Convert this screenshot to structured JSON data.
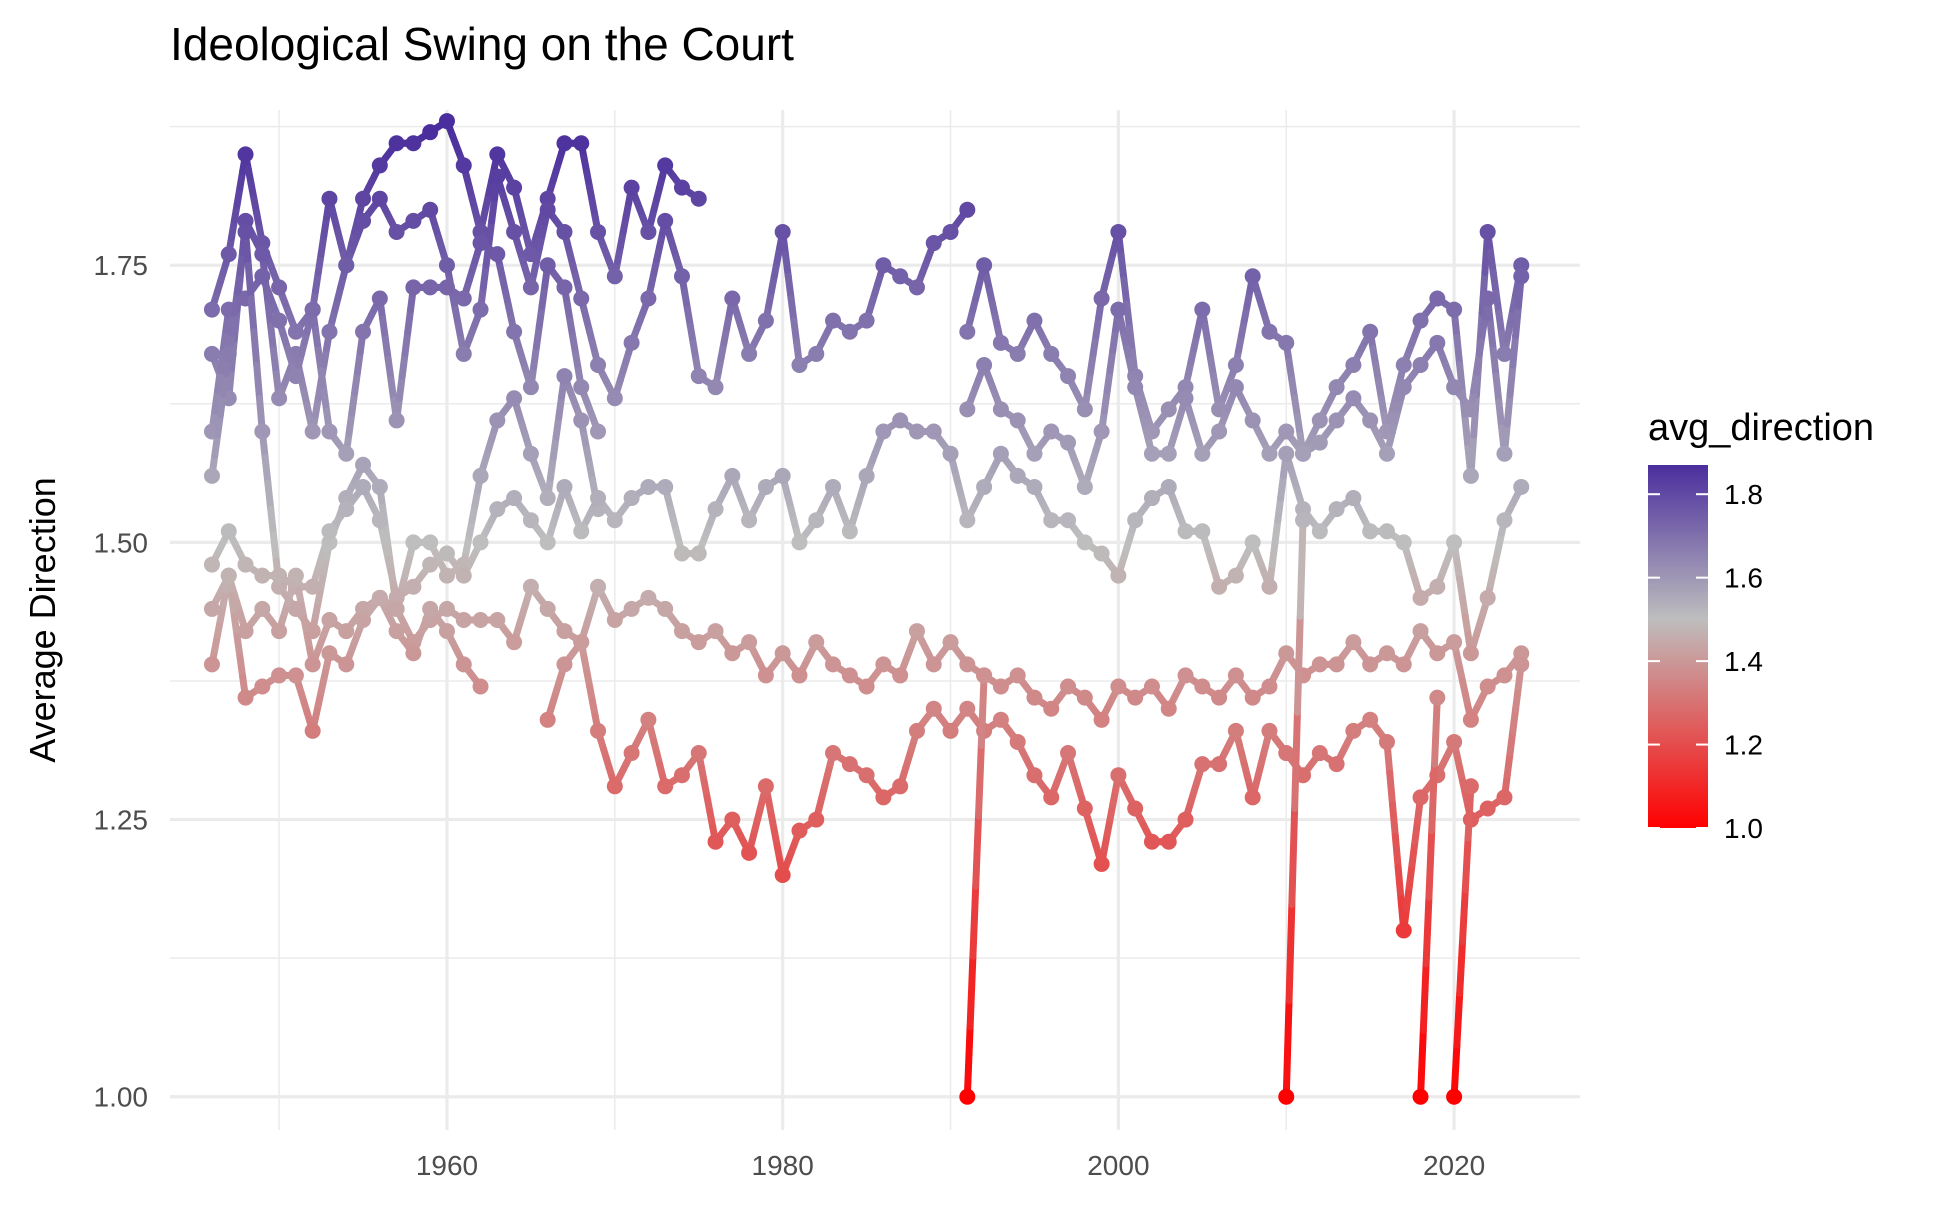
{
  "chart_data": {
    "type": "line",
    "title": "Ideological Swing on the Court",
    "xlabel": "",
    "ylabel": "Average Direction",
    "xlim": [
      1943.5,
      2027.5
    ],
    "ylim": [
      0.97,
      1.89
    ],
    "x_ticks": [
      1960,
      1980,
      2000,
      2020
    ],
    "x_tick_labels": [
      "1960",
      "1980",
      "2000",
      "2020"
    ],
    "x_minor_ticks": [
      1950,
      1970,
      1990,
      2010
    ],
    "y_ticks": [
      1.0,
      1.25,
      1.5,
      1.75
    ],
    "y_tick_labels": [
      "1.00",
      "1.25",
      "1.50",
      "1.75"
    ],
    "y_minor_ticks": [
      1.125,
      1.375,
      1.625,
      1.875
    ],
    "grid": true,
    "legend": {
      "title": "avg_direction",
      "placement": "right",
      "ticks": [
        1.0,
        1.2,
        1.4,
        1.6,
        1.8
      ],
      "tick_labels": [
        "1.0",
        "1.2",
        "1.4",
        "1.6",
        "1.8"
      ],
      "range": [
        1.0,
        1.87
      ]
    },
    "color_scale": {
      "low": "#FF0000",
      "mid": "#BEBEBE",
      "high": "#4B2E9D",
      "midpoint": 1.5
    },
    "series": [
      {
        "name": "series-1",
        "x": [
          1946,
          1947,
          1948,
          1949,
          1950,
          1951,
          1952,
          1953,
          1954,
          1955,
          1956,
          1957,
          1958,
          1959,
          1960,
          1961,
          1962,
          1963,
          1964,
          1965,
          1966,
          1967,
          1968,
          1969,
          1970,
          1971,
          1972,
          1973,
          1974,
          1975
        ],
        "values": [
          1.71,
          1.76,
          1.85,
          1.77,
          1.73,
          1.69,
          1.71,
          1.81,
          1.75,
          1.81,
          1.84,
          1.86,
          1.86,
          1.87,
          1.88,
          1.84,
          1.78,
          1.85,
          1.82,
          1.76,
          1.81,
          1.86,
          1.86,
          1.78,
          1.74,
          1.82,
          1.78,
          1.84,
          1.82,
          1.81
        ]
      },
      {
        "name": "series-2",
        "x": [
          1946,
          1947,
          1948,
          1949,
          1950,
          1951,
          1952,
          1953,
          1954,
          1955,
          1956,
          1957,
          1958,
          1959,
          1960,
          1961,
          1962,
          1963,
          1964,
          1965,
          1966,
          1967,
          1968,
          1969,
          1970,
          1971,
          1972,
          1973,
          1974,
          1975,
          1976,
          1977,
          1978,
          1979,
          1980,
          1981,
          1982,
          1983,
          1984,
          1985,
          1986,
          1987,
          1988,
          1989,
          1990,
          1991
        ],
        "values": [
          1.67,
          1.63,
          1.79,
          1.76,
          1.63,
          1.67,
          1.6,
          1.69,
          1.75,
          1.79,
          1.81,
          1.78,
          1.79,
          1.8,
          1.75,
          1.67,
          1.71,
          1.83,
          1.78,
          1.73,
          1.8,
          1.78,
          1.72,
          1.66,
          1.63,
          1.68,
          1.72,
          1.79,
          1.74,
          1.65,
          1.64,
          1.72,
          1.67,
          1.7,
          1.78,
          1.66,
          1.67,
          1.7,
          1.69,
          1.7,
          1.75,
          1.74,
          1.73,
          1.77,
          1.78,
          1.8
        ]
      },
      {
        "name": "series-3",
        "x": [
          1946,
          1947,
          1948,
          1949,
          1950,
          1951,
          1952,
          1953,
          1954,
          1955,
          1956,
          1957,
          1958,
          1959,
          1960,
          1961,
          1962,
          1963,
          1964,
          1965,
          1966,
          1967,
          1968,
          1969
        ],
        "values": [
          1.6,
          1.71,
          1.72,
          1.74,
          1.7,
          1.65,
          1.71,
          1.6,
          1.58,
          1.69,
          1.72,
          1.61,
          1.73,
          1.73,
          1.73,
          1.72,
          1.77,
          1.76,
          1.69,
          1.64,
          1.75,
          1.73,
          1.64,
          1.6
        ]
      },
      {
        "name": "series-4",
        "x": [
          1946,
          1947,
          1948,
          1949,
          1950,
          1951,
          1952,
          1953,
          1954,
          1955,
          1956,
          1957,
          1958,
          1959,
          1960,
          1961,
          1962,
          1963,
          1964,
          1965,
          1966,
          1967,
          1968,
          1969
        ],
        "values": [
          1.56,
          1.67,
          1.78,
          1.6,
          1.46,
          1.44,
          1.42,
          1.5,
          1.54,
          1.57,
          1.55,
          1.44,
          1.5,
          1.5,
          1.47,
          1.48,
          1.56,
          1.61,
          1.63,
          1.58,
          1.54,
          1.65,
          1.61,
          1.53
        ]
      },
      {
        "name": "series-5",
        "x": [
          1946,
          1947,
          1948,
          1949,
          1950,
          1951,
          1952,
          1953,
          1954,
          1955,
          1956,
          1957,
          1958,
          1959,
          1960,
          1961,
          1962,
          1963,
          1964,
          1965,
          1966,
          1967,
          1968,
          1969,
          1970,
          1971,
          1972,
          1973,
          1974,
          1975,
          1976,
          1977,
          1978,
          1979,
          1980,
          1981,
          1982,
          1983,
          1984,
          1985,
          1986,
          1987,
          1988,
          1989,
          1990,
          1991,
          1992,
          1993,
          1994,
          1995,
          1996,
          1997,
          1998,
          1999,
          2000,
          2001,
          2002,
          2003,
          2004,
          2005,
          2006,
          2007,
          2008,
          2009,
          2010,
          2011,
          2012,
          2013,
          2014,
          2015,
          2016,
          2017,
          2018,
          2019,
          2020,
          2021,
          2022,
          2023,
          2024
        ],
        "values": [
          1.48,
          1.51,
          1.48,
          1.47,
          1.47,
          1.46,
          1.46,
          1.51,
          1.53,
          1.55,
          1.52,
          1.45,
          1.46,
          1.48,
          1.49,
          1.47,
          1.5,
          1.53,
          1.54,
          1.52,
          1.5,
          1.55,
          1.51,
          1.54,
          1.52,
          1.54,
          1.55,
          1.55,
          1.49,
          1.49,
          1.53,
          1.56,
          1.52,
          1.55,
          1.56,
          1.5,
          1.52,
          1.55,
          1.51,
          1.56,
          1.6,
          1.61,
          1.6,
          1.6,
          1.58,
          1.52,
          1.55,
          1.58,
          1.56,
          1.55,
          1.52,
          1.52,
          1.5,
          1.49,
          1.47,
          1.52,
          1.54,
          1.55,
          1.51,
          1.51,
          1.46,
          1.47,
          1.5,
          1.46,
          1.58,
          1.53,
          1.51,
          1.53,
          1.54,
          1.51,
          1.51,
          1.5,
          1.45,
          1.46,
          1.5,
          1.4,
          1.45,
          1.52,
          1.55
        ]
      },
      {
        "name": "series-6",
        "x": [
          1946,
          1947,
          1948,
          1949,
          1950,
          1951,
          1952,
          1953,
          1954,
          1955,
          1956,
          1957,
          1958,
          1959,
          1960,
          1961,
          1962,
          1963,
          1964,
          1965,
          1966,
          1967,
          1968,
          1969,
          1970,
          1971,
          1972,
          1973,
          1974,
          1975,
          1976,
          1977,
          1978,
          1979,
          1980,
          1981,
          1982,
          1983,
          1984,
          1985,
          1986,
          1987,
          1988,
          1989,
          1990,
          1991,
          1992,
          1993,
          1994,
          1995,
          1996,
          1997,
          1998,
          1999,
          2000,
          2001,
          2002,
          2003,
          2004,
          2005,
          2006,
          2007,
          2008,
          2009,
          2010,
          2011,
          2012,
          2013,
          2014,
          2015,
          2016,
          2017,
          2018,
          2019,
          2020,
          2021,
          2022,
          2023,
          2024
        ],
        "values": [
          1.44,
          1.47,
          1.42,
          1.44,
          1.42,
          1.47,
          1.39,
          1.43,
          1.42,
          1.44,
          1.45,
          1.44,
          1.41,
          1.43,
          1.44,
          1.43,
          1.43,
          1.43,
          1.41,
          1.46,
          1.44,
          1.42,
          1.41,
          1.46,
          1.43,
          1.44,
          1.45,
          1.44,
          1.42,
          1.41,
          1.42,
          1.4,
          1.41,
          1.38,
          1.4,
          1.38,
          1.41,
          1.39,
          1.38,
          1.37,
          1.39,
          1.38,
          1.42,
          1.39,
          1.41,
          1.39,
          1.38,
          1.37,
          1.38,
          1.36,
          1.35,
          1.37,
          1.36,
          1.34,
          1.37,
          1.36,
          1.37,
          1.35,
          1.38,
          1.37,
          1.36,
          1.38,
          1.36,
          1.37,
          1.4,
          1.38,
          1.39,
          1.39,
          1.41,
          1.39,
          1.4,
          1.39,
          1.42,
          1.4,
          1.41,
          1.34,
          1.37,
          1.38,
          1.4
        ]
      },
      {
        "name": "series-7",
        "x": [
          1946,
          1947,
          1948,
          1949,
          1950,
          1951,
          1952,
          1953,
          1954,
          1955,
          1956,
          1957,
          1958,
          1959,
          1960,
          1961,
          1962
        ],
        "values": [
          1.39,
          1.47,
          1.36,
          1.37,
          1.38,
          1.38,
          1.33,
          1.4,
          1.39,
          1.43,
          1.45,
          1.42,
          1.4,
          1.44,
          1.42,
          1.39,
          1.37
        ]
      },
      {
        "name": "series-8",
        "x": [
          1966,
          1967,
          1968,
          1969,
          1970,
          1971,
          1972,
          1973,
          1974,
          1975,
          1976,
          1977,
          1978,
          1979,
          1980,
          1981,
          1982,
          1983,
          1984,
          1985,
          1986,
          1987,
          1988,
          1989,
          1990,
          1991,
          1992,
          1993,
          1994,
          1995,
          1996,
          1997,
          1998,
          1999,
          2000,
          2001,
          2002,
          2003,
          2004,
          2005,
          2006,
          2007,
          2008,
          2009,
          2010,
          2011,
          2012,
          2013,
          2014,
          2015,
          2016,
          2017,
          2018,
          2019,
          2020,
          2021,
          2022,
          2023,
          2024
        ],
        "values": [
          1.34,
          1.39,
          1.41,
          1.33,
          1.28,
          1.31,
          1.34,
          1.28,
          1.29,
          1.31,
          1.23,
          1.25,
          1.22,
          1.28,
          1.2,
          1.24,
          1.25,
          1.31,
          1.3,
          1.29,
          1.27,
          1.28,
          1.33,
          1.35,
          1.33,
          1.35,
          1.33,
          1.34,
          1.32,
          1.29,
          1.27,
          1.31,
          1.26,
          1.21,
          1.29,
          1.26,
          1.23,
          1.23,
          1.25,
          1.3,
          1.3,
          1.33,
          1.27,
          1.33,
          1.31,
          1.29,
          1.31,
          1.3,
          1.33,
          1.34,
          1.32,
          1.15,
          1.27,
          1.29,
          1.32,
          1.25,
          1.26,
          1.27,
          1.39
        ]
      },
      {
        "name": "series-9",
        "x": [
          1991,
          1992,
          1993,
          1994,
          1995,
          1996,
          1997,
          1998,
          1999,
          2000,
          2001,
          2002,
          2003,
          2004,
          2005,
          2006,
          2007,
          2008,
          2009,
          2010,
          2011,
          2012,
          2013,
          2014,
          2015,
          2016,
          2017,
          2018,
          2019,
          2020,
          2021,
          2022,
          2023,
          2024
        ],
        "values": [
          1.69,
          1.75,
          1.68,
          1.67,
          1.7,
          1.67,
          1.65,
          1.62,
          1.72,
          1.78,
          1.65,
          1.6,
          1.62,
          1.64,
          1.71,
          1.62,
          1.66,
          1.74,
          1.69,
          1.68,
          1.58,
          1.61,
          1.64,
          1.66,
          1.69,
          1.6,
          1.66,
          1.7,
          1.72,
          1.71,
          1.56,
          1.78,
          1.67,
          1.75
        ]
      },
      {
        "name": "series-10",
        "x": [
          1991,
          1992,
          1993,
          1994,
          1995,
          1996,
          1997,
          1998,
          1999,
          2000,
          2001,
          2002,
          2003,
          2004,
          2005,
          2006,
          2007,
          2008,
          2009,
          2010,
          2011,
          2012,
          2013,
          2014,
          2015,
          2016,
          2017,
          2018,
          2019,
          2020,
          2021,
          2022,
          2023,
          2024
        ],
        "values": [
          1.62,
          1.66,
          1.62,
          1.61,
          1.58,
          1.6,
          1.59,
          1.55,
          1.6,
          1.71,
          1.64,
          1.58,
          1.58,
          1.63,
          1.58,
          1.6,
          1.64,
          1.61,
          1.58,
          1.6,
          1.58,
          1.59,
          1.61,
          1.63,
          1.61,
          1.58,
          1.64,
          1.66,
          1.68,
          1.64,
          1.62,
          1.72,
          1.58,
          1.74
        ]
      },
      {
        "name": "series-11",
        "x": [
          1991,
          1992
        ],
        "values": [
          1.0,
          1.38
        ]
      },
      {
        "name": "series-12",
        "x": [
          2010,
          2011
        ],
        "values": [
          1.0,
          1.52
        ]
      },
      {
        "name": "series-13",
        "x": [
          2018,
          2019
        ],
        "values": [
          1.0,
          1.36
        ]
      },
      {
        "name": "series-14",
        "x": [
          2020,
          2021
        ],
        "values": [
          1.0,
          1.28
        ]
      }
    ]
  }
}
